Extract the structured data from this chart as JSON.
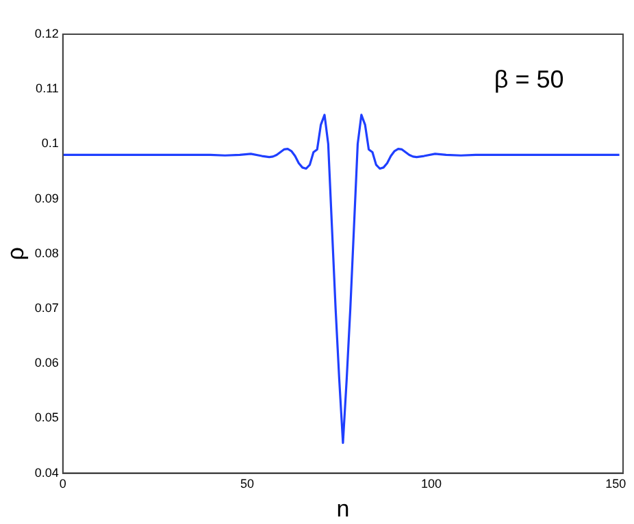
{
  "chart_data": {
    "type": "line",
    "xlabel": "n",
    "ylabel": "ρ",
    "annotations": [
      "β = 50"
    ],
    "x": [
      0,
      20,
      40,
      44,
      48,
      51,
      54,
      56,
      57,
      58,
      59,
      60,
      61,
      62,
      63,
      64,
      65,
      66,
      67,
      68,
      69,
      70,
      71,
      72,
      73,
      74,
      75,
      76,
      77,
      78,
      79,
      80,
      81,
      82,
      83,
      84,
      85,
      86,
      87,
      88,
      89,
      90,
      91,
      92,
      93,
      94,
      95,
      96,
      98,
      101,
      104,
      108,
      112,
      132,
      151
    ],
    "series": [
      {
        "color": "#1f3fff",
        "values": [
          0.098,
          0.098,
          0.098,
          0.0979,
          0.098,
          0.0982,
          0.0978,
          0.0976,
          0.0977,
          0.098,
          0.0985,
          0.099,
          0.0991,
          0.0987,
          0.0978,
          0.0965,
          0.0957,
          0.0955,
          0.0962,
          0.0985,
          0.099,
          0.1035,
          0.1053,
          0.1,
          0.085,
          0.07,
          0.057,
          0.0455,
          0.057,
          0.07,
          0.085,
          0.1,
          0.1053,
          0.1035,
          0.099,
          0.0985,
          0.0962,
          0.0955,
          0.0957,
          0.0965,
          0.0978,
          0.0987,
          0.0991,
          0.099,
          0.0985,
          0.098,
          0.0977,
          0.0976,
          0.0978,
          0.0982,
          0.098,
          0.0979,
          0.098,
          0.098,
          0.098
        ]
      }
    ],
    "xlim": [
      0,
      152
    ],
    "ylim": [
      0.04,
      0.12
    ],
    "xticks": [
      0,
      50,
      100,
      150
    ],
    "yticks": [
      {
        "value": 0.04,
        "label": "0.04"
      },
      {
        "value": 0.05,
        "label": "0.05"
      },
      {
        "value": 0.06,
        "label": "0.06"
      },
      {
        "value": 0.07,
        "label": "0.07"
      },
      {
        "value": 0.08,
        "label": "0.08"
      },
      {
        "value": 0.09,
        "label": "0.09"
      },
      {
        "value": 0.1,
        "label": "0.1"
      },
      {
        "value": 0.11,
        "label": "0.11"
      },
      {
        "value": 0.12,
        "label": "0.12"
      }
    ],
    "grid": false,
    "legend": false,
    "marker": "none",
    "line_style": "solid"
  }
}
